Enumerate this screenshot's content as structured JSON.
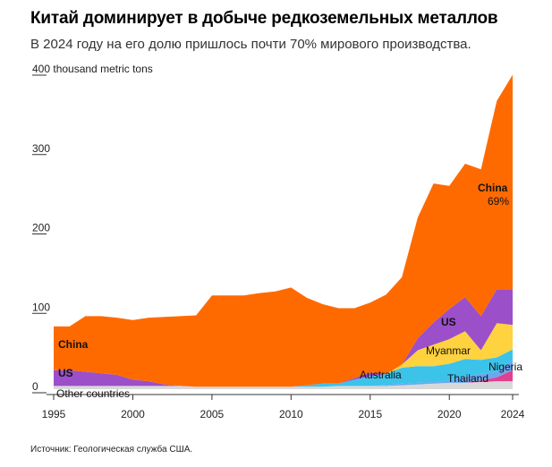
{
  "title": "Китай доминирует в добыче редкоземельных металлов",
  "subtitle": "В 2024 году на его долю пришлось почти 70% мирового производства.",
  "source": "Источник: Геологическая служба США.",
  "colors": {
    "China": "#ff6a00",
    "US": "#9b4fc8",
    "Myanmar": "#ffd23f",
    "Australia": "#3cc3ea",
    "Thailand": "#6aa8f0",
    "Nigeria": "#e0408f",
    "Other countries": "#d8d8d8",
    "axis": "#333333"
  },
  "chart_data": {
    "type": "area",
    "stacked": true,
    "ylabel": "thousand metric tons",
    "ylim": [
      0,
      400
    ],
    "yticks": [
      {
        "value": 0,
        "label": "0"
      },
      {
        "value": 100,
        "label": "100"
      },
      {
        "value": 200,
        "label": "200"
      },
      {
        "value": 300,
        "label": "300"
      },
      {
        "value": 400,
        "label": "400 thousand metric tons"
      }
    ],
    "xticks": [
      1995,
      2000,
      2005,
      2010,
      2015,
      2020,
      2024
    ],
    "x": [
      1995,
      1996,
      1997,
      1998,
      1999,
      2000,
      2001,
      2002,
      2003,
      2004,
      2005,
      2006,
      2007,
      2008,
      2009,
      2010,
      2011,
      2012,
      2013,
      2014,
      2015,
      2016,
      2017,
      2018,
      2019,
      2020,
      2021,
      2022,
      2023,
      2024
    ],
    "series": [
      {
        "name": "Other countries",
        "values": [
          4,
          4,
          4,
          4,
          4,
          4,
          4,
          4,
          4,
          3,
          3,
          3,
          3,
          3,
          3,
          3,
          3,
          3,
          4,
          4,
          4,
          4,
          5,
          6,
          7,
          8,
          8,
          9,
          10,
          10
        ]
      },
      {
        "name": "Nigeria",
        "values": [
          0,
          0,
          0,
          0,
          0,
          0,
          0,
          0,
          0,
          0,
          0,
          0,
          0,
          0,
          0,
          0,
          0,
          0,
          0,
          0,
          0,
          0,
          0,
          0,
          0,
          0,
          0,
          2,
          5,
          14
        ]
      },
      {
        "name": "Thailand",
        "values": [
          0,
          0,
          0,
          0,
          0,
          0,
          0,
          0,
          0,
          0,
          0,
          0,
          0,
          0,
          0,
          0,
          0,
          0,
          0,
          0,
          0,
          1,
          2,
          2,
          2,
          3,
          8,
          8,
          7,
          13
        ]
      },
      {
        "name": "Australia",
        "values": [
          0,
          0,
          0,
          0,
          0,
          0,
          0,
          0,
          0,
          0,
          0,
          0,
          0,
          0,
          0,
          0,
          2,
          4,
          3,
          8,
          12,
          14,
          20,
          21,
          20,
          21,
          22,
          18,
          18,
          13
        ]
      },
      {
        "name": "Myanmar",
        "values": [
          0,
          0,
          0,
          0,
          0,
          0,
          0,
          0,
          0,
          0,
          0,
          0,
          0,
          0,
          0,
          0,
          0,
          0,
          0,
          0,
          0,
          0,
          4,
          20,
          27,
          31,
          35,
          12,
          43,
          31
        ]
      },
      {
        "name": "US",
        "values": [
          20,
          20,
          18,
          16,
          14,
          8,
          6,
          2,
          0,
          0,
          0,
          0,
          0,
          0,
          0,
          0,
          0,
          0,
          0,
          2,
          5,
          0,
          0,
          15,
          28,
          38,
          43,
          43,
          43,
          45
        ]
      },
      {
        "name": "China",
        "values": [
          55,
          55,
          70,
          72,
          72,
          75,
          80,
          85,
          88,
          90,
          115,
          115,
          115,
          118,
          120,
          125,
          110,
          100,
          95,
          88,
          88,
          100,
          110,
          152,
          175,
          155,
          168,
          185,
          237,
          270
        ]
      }
    ],
    "annotations": [
      {
        "text": "China",
        "series": "China"
      },
      {
        "text": "69%",
        "series": "China"
      },
      {
        "text": "US",
        "series": "US"
      },
      {
        "text": "Myanmar",
        "series": "Myanmar"
      },
      {
        "text": "Australia",
        "series": "Australia"
      },
      {
        "text": "Thailand",
        "series": "Thailand"
      },
      {
        "text": "Nigeria",
        "series": "Nigeria"
      },
      {
        "text": "Other countries",
        "series": "Other countries"
      }
    ],
    "grid": false,
    "legend": "inline labels"
  }
}
